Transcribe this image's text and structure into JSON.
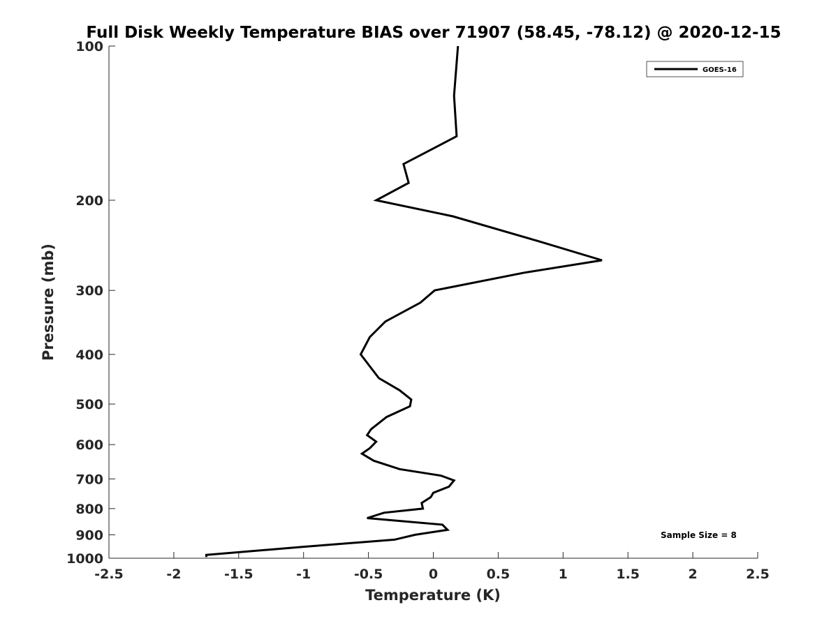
{
  "chart_data": {
    "type": "line",
    "title": "Full Disk Weekly Temperature BIAS over 71907 (58.45, -78.12) @ 2020-12-15",
    "xlabel": "Temperature (K)",
    "ylabel": "Pressure (mb)",
    "xlim": [
      -2.5,
      2.5
    ],
    "ylim": [
      100,
      1000
    ],
    "y_scale": "log",
    "y_reversed": true,
    "grid": false,
    "legend_position": "top-right",
    "x_ticks": [
      "-2.5",
      "-2",
      "-1.5",
      "-1",
      "-0.5",
      "0",
      "0.5",
      "1",
      "1.5",
      "2",
      "2.5"
    ],
    "x_tick_values": [
      -2.5,
      -2,
      -1.5,
      -1,
      -0.5,
      0,
      0.5,
      1,
      1.5,
      2,
      2.5
    ],
    "y_ticks": [
      "100",
      "200",
      "300",
      "400",
      "500",
      "600",
      "700",
      "800",
      "900",
      "1000"
    ],
    "y_tick_values": [
      100,
      200,
      300,
      400,
      500,
      600,
      700,
      800,
      900,
      1000
    ],
    "series": [
      {
        "name": "GOES-16",
        "color": "#000000",
        "points": [
          {
            "x": 0.19,
            "p": 100
          },
          {
            "x": 0.16,
            "p": 125
          },
          {
            "x": 0.18,
            "p": 150
          },
          {
            "x": -0.23,
            "p": 170
          },
          {
            "x": -0.19,
            "p": 185
          },
          {
            "x": -0.44,
            "p": 200
          },
          {
            "x": 0.15,
            "p": 215
          },
          {
            "x": 0.8,
            "p": 240
          },
          {
            "x": 1.3,
            "p": 262
          },
          {
            "x": 0.7,
            "p": 277
          },
          {
            "x": 0.01,
            "p": 300
          },
          {
            "x": -0.1,
            "p": 317
          },
          {
            "x": -0.37,
            "p": 345
          },
          {
            "x": -0.49,
            "p": 370
          },
          {
            "x": -0.56,
            "p": 400
          },
          {
            "x": -0.42,
            "p": 445
          },
          {
            "x": -0.26,
            "p": 470
          },
          {
            "x": -0.17,
            "p": 490
          },
          {
            "x": -0.18,
            "p": 505
          },
          {
            "x": -0.36,
            "p": 530
          },
          {
            "x": -0.48,
            "p": 560
          },
          {
            "x": -0.51,
            "p": 575
          },
          {
            "x": -0.44,
            "p": 592
          },
          {
            "x": -0.49,
            "p": 610
          },
          {
            "x": -0.55,
            "p": 625
          },
          {
            "x": -0.46,
            "p": 645
          },
          {
            "x": -0.26,
            "p": 670
          },
          {
            "x": 0.06,
            "p": 690
          },
          {
            "x": 0.16,
            "p": 705
          },
          {
            "x": 0.12,
            "p": 725
          },
          {
            "x": 0.0,
            "p": 745
          },
          {
            "x": -0.02,
            "p": 760
          },
          {
            "x": -0.09,
            "p": 780
          },
          {
            "x": -0.08,
            "p": 800
          },
          {
            "x": -0.38,
            "p": 815
          },
          {
            "x": -0.51,
            "p": 835
          },
          {
            "x": 0.07,
            "p": 860
          },
          {
            "x": 0.11,
            "p": 880
          },
          {
            "x": -0.14,
            "p": 900
          },
          {
            "x": -0.3,
            "p": 920
          },
          {
            "x": -1.0,
            "p": 950
          },
          {
            "x": -1.75,
            "p": 985
          },
          {
            "x": -1.75,
            "p": 995
          }
        ]
      }
    ],
    "annotation": "Sample Size = 8"
  }
}
